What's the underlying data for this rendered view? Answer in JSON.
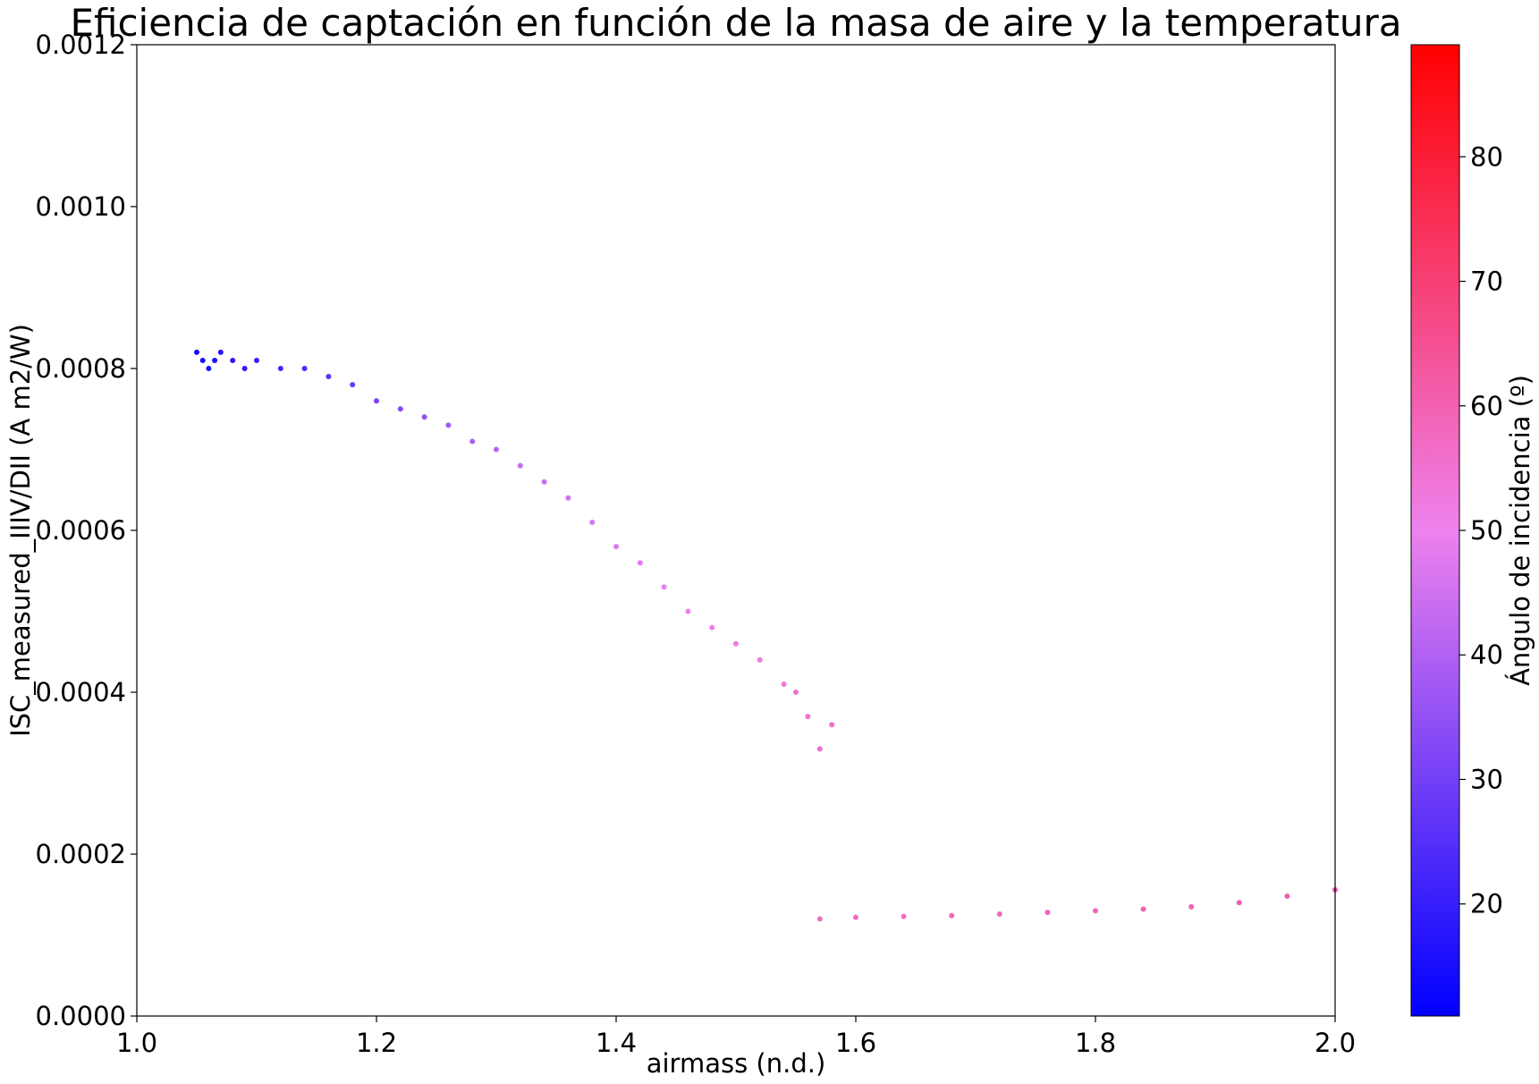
{
  "chart_data": {
    "type": "scatter",
    "title": "Eficiencia de captación en función de la masa de aire y la temperatura",
    "xlabel": "airmass (n.d.)",
    "ylabel": "ISC_measured_IIIV/DII (A m2/W)",
    "xlim": [
      1.0,
      2.0
    ],
    "ylim": [
      0.0,
      0.0012
    ],
    "xticks": [
      "1.0",
      "1.2",
      "1.4",
      "1.6",
      "1.8",
      "2.0"
    ],
    "yticks": [
      "0.0000",
      "0.0002",
      "0.0004",
      "0.0006",
      "0.0008",
      "0.0010",
      "0.0012"
    ],
    "grid": false,
    "colorbar": {
      "label": "Ángulo de incidencia (º)",
      "range": [
        11,
        89
      ],
      "ticks": [
        "20",
        "30",
        "40",
        "50",
        "60",
        "70",
        "80"
      ],
      "colormap": [
        "#0000ff",
        "#ee82ee",
        "#ff0000"
      ]
    },
    "series": [
      {
        "x": [
          1.05,
          1.055,
          1.06,
          1.065,
          1.07,
          1.08,
          1.09,
          1.1,
          1.12,
          1.14,
          1.16,
          1.18,
          1.2,
          1.22,
          1.24,
          1.26,
          1.28,
          1.3,
          1.32,
          1.34,
          1.36,
          1.38,
          1.4,
          1.42,
          1.44,
          1.46,
          1.48,
          1.5,
          1.52,
          1.54,
          1.55,
          1.56,
          1.57,
          1.58
        ],
        "y": [
          0.00082,
          0.00081,
          0.0008,
          0.00081,
          0.00082,
          0.00081,
          0.0008,
          0.00081,
          0.0008,
          0.0008,
          0.00079,
          0.00078,
          0.00076,
          0.00075,
          0.00074,
          0.00073,
          0.00071,
          0.0007,
          0.00068,
          0.00066,
          0.00064,
          0.00061,
          0.00058,
          0.00056,
          0.00053,
          0.0005,
          0.00048,
          0.00046,
          0.00044,
          0.00041,
          0.0004,
          0.00037,
          0.00033,
          0.00036
        ],
        "angle": [
          14,
          14,
          15,
          16,
          17,
          18,
          19,
          20,
          22,
          24,
          26,
          28,
          31,
          33,
          35,
          37,
          39,
          41,
          43,
          44,
          45,
          46,
          47,
          48,
          49,
          50,
          51,
          52,
          53,
          54,
          55,
          55,
          56,
          56
        ]
      },
      {
        "x": [
          1.57,
          1.6,
          1.64,
          1.68,
          1.72,
          1.76,
          1.8,
          1.84,
          1.88,
          1.92,
          1.96,
          2.0
        ],
        "y": [
          0.00012,
          0.000122,
          0.000123,
          0.000124,
          0.000126,
          0.000128,
          0.00013,
          0.000132,
          0.000135,
          0.00014,
          0.000148,
          0.000156
        ],
        "angle": [
          56,
          57,
          57,
          58,
          58,
          59,
          59,
          60,
          60,
          61,
          61,
          62
        ]
      }
    ]
  }
}
